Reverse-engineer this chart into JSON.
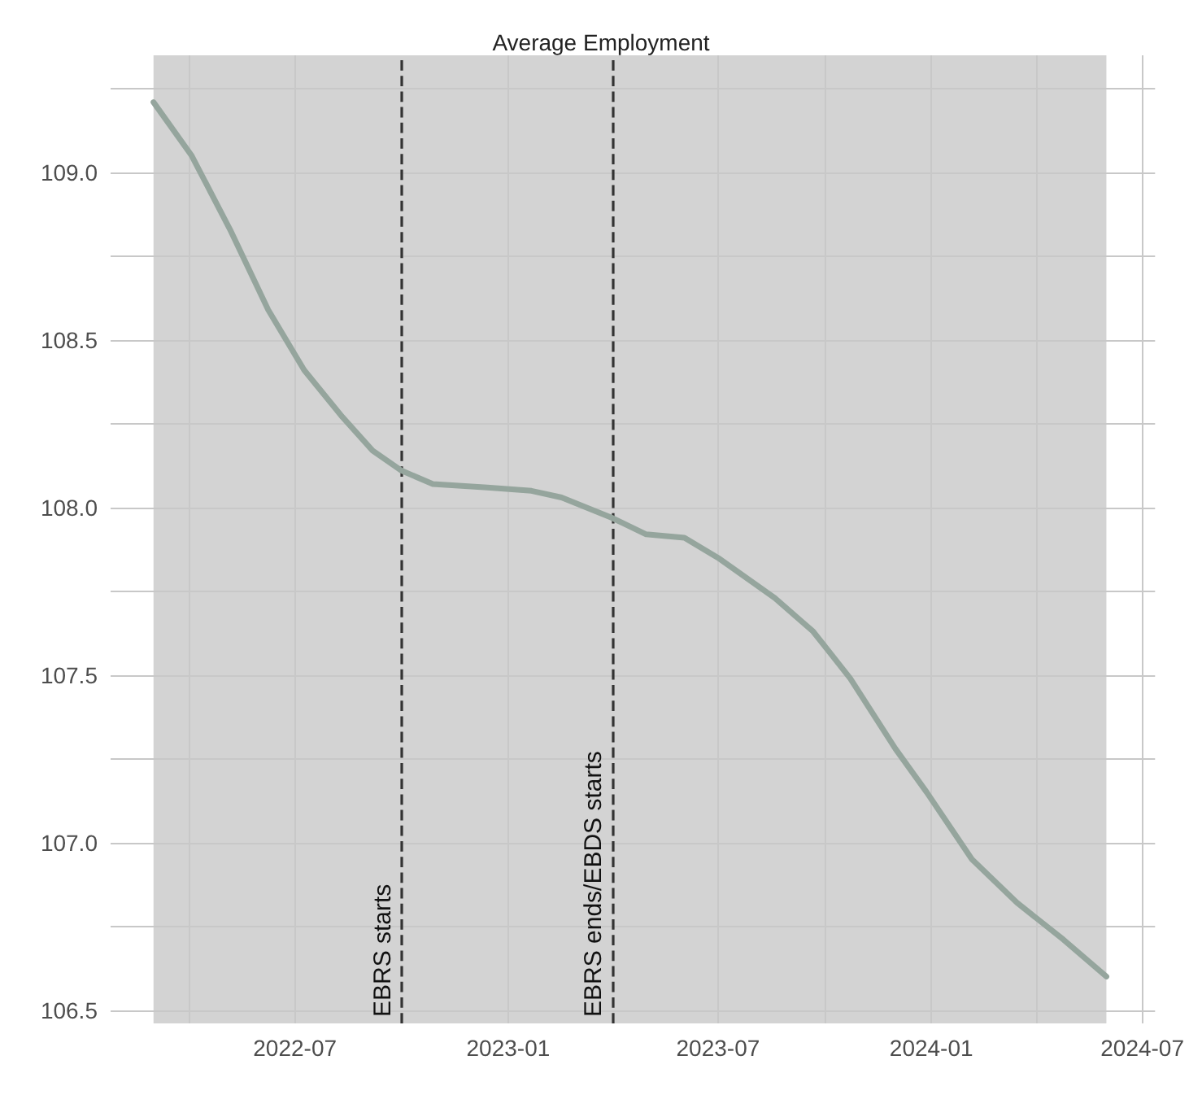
{
  "chart_data": {
    "type": "line",
    "title": "Average Employment",
    "x": [
      "2022-03-01",
      "2022-04-03",
      "2022-05-06",
      "2022-06-08",
      "2022-07-09",
      "2022-08-11",
      "2022-09-06",
      "2022-10-01",
      "2022-10-28",
      "2022-12-14",
      "2023-01-21",
      "2023-02-16",
      "2023-03-31",
      "2023-04-30",
      "2023-06-02",
      "2023-07-01",
      "2023-08-19",
      "2023-09-21",
      "2023-10-23",
      "2023-12-01",
      "2023-12-28",
      "2024-02-05",
      "2024-03-15",
      "2024-04-24",
      "2024-05-31"
    ],
    "series": [
      {
        "color": "#95a59d",
        "values": [
          109.21,
          109.05,
          108.83,
          108.59,
          108.41,
          108.27,
          108.17,
          108.11,
          108.07,
          108.06,
          108.05,
          108.03,
          107.97,
          107.92,
          107.91,
          107.85,
          107.73,
          107.63,
          107.49,
          107.28,
          107.15,
          106.95,
          106.82,
          106.71,
          106.6
        ]
      }
    ],
    "xlim": [
      "2022-01-23",
      "2024-07-12"
    ],
    "xticks": [
      {
        "value": "2022-04",
        "label": null
      },
      {
        "value": "2022-07",
        "label": "2022-07"
      },
      {
        "value": "2023-01",
        "label": "2023-01"
      },
      {
        "value": "2023-07",
        "label": "2023-07"
      },
      {
        "value": "2023-10",
        "label": null
      },
      {
        "value": "2024-01",
        "label": "2024-01"
      },
      {
        "value": "2024-04",
        "label": null
      },
      {
        "value": "2024-07",
        "label": "2024-07"
      }
    ],
    "ylim": [
      106.46,
      109.35
    ],
    "yticks": [
      {
        "value": 106.5,
        "label": "106.5"
      },
      {
        "value": 106.75,
        "label": null
      },
      {
        "value": 107,
        "label": "107.0"
      },
      {
        "value": 107.25,
        "label": null
      },
      {
        "value": 107.5,
        "label": "107.5"
      },
      {
        "value": 107.75,
        "label": null
      },
      {
        "value": 108,
        "label": "108.0"
      },
      {
        "value": 108.25,
        "label": null
      },
      {
        "value": 108.5,
        "label": "108.5"
      },
      {
        "value": 108.75,
        "label": null
      },
      {
        "value": 109,
        "label": "109.0"
      },
      {
        "value": 109.25,
        "label": null
      }
    ],
    "ref_lines": [
      {
        "axis": "x",
        "value": "2022-10-01",
        "label": "EBRS starts",
        "color": "#333333",
        "line_style": "dashed"
      },
      {
        "axis": "x",
        "value": "2023-04-01",
        "label": "EBRS ends/EBDS starts",
        "color": "#333333",
        "line_style": "dashed"
      }
    ],
    "bands": [
      {
        "axis": "x",
        "from": "2022-03-01",
        "to": "2024-05-31",
        "color": "#d3d3d3"
      }
    ],
    "grid": true,
    "marker": "none",
    "line_style": "solid"
  }
}
